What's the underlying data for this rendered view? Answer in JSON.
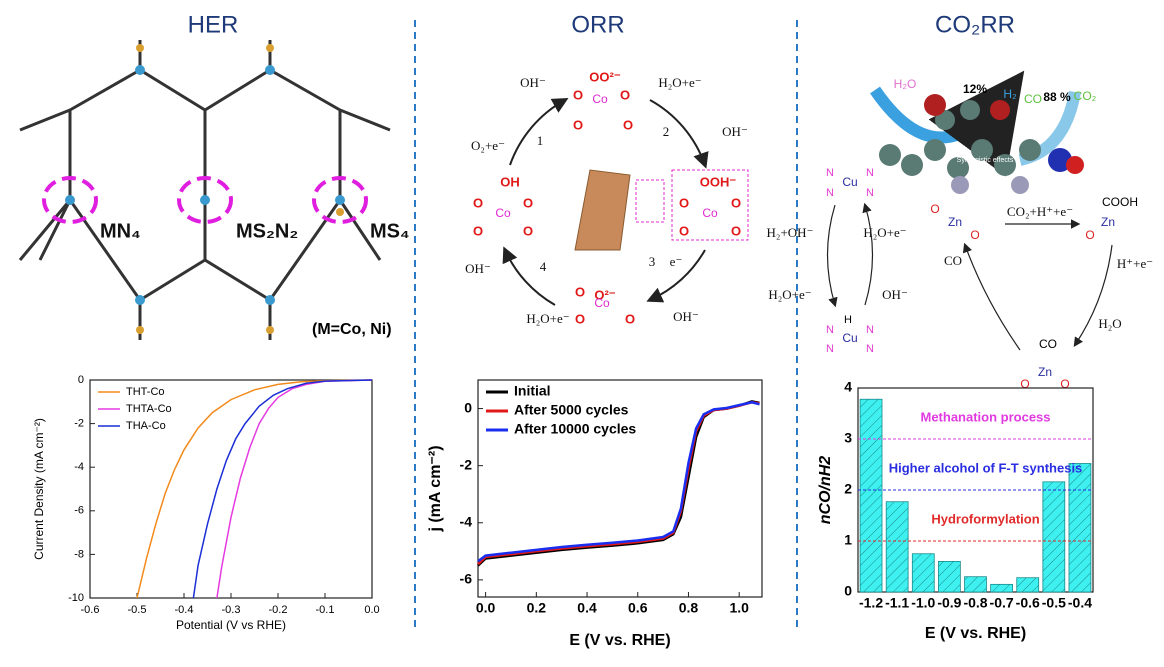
{
  "headers": [
    "HER",
    "ORR",
    "CO₂RR"
  ],
  "her_diagram": {
    "labels": [
      "MN₄",
      "MS₂N₂",
      "MS₄",
      "(M=Co, Ni)"
    ]
  },
  "orr_diagram": {
    "species": [
      "OO²⁻",
      "OOH⁻",
      "O²⁻",
      "OH"
    ],
    "metal": "Co",
    "atom": "O",
    "reagents": [
      "H₂O+e⁻",
      "O₂+e⁻",
      "e⁻",
      "H₂O+e⁻"
    ],
    "products": [
      "OH⁻",
      "OH⁻",
      "OH⁻",
      "OH⁻"
    ],
    "steps": [
      "1",
      "2",
      "3",
      "4"
    ]
  },
  "co2rr_diagram": {
    "percentages": [
      "12%",
      "88 %"
    ],
    "molecules": [
      "H₂O",
      "H₂",
      "CO",
      "CO₂"
    ],
    "note": "Synergistic effects",
    "metals": [
      "Cu",
      "Zn"
    ],
    "atom_n": "N",
    "atom_o": "O",
    "atom_h": "H",
    "species": [
      "COOH",
      "CO"
    ],
    "reagents": [
      "H₂+OH⁻",
      "H₂O+e⁻",
      "H₂O+e⁻",
      "OH⁻",
      "CO₂+H⁺+e⁻",
      "H⁺+e⁻",
      "CO",
      "H₂O"
    ]
  },
  "chart_data": [
    {
      "type": "line",
      "xlabel": "Potential (V vs RHE)",
      "ylabel": "Current Density (mA cm⁻²)",
      "xlim": [
        -0.6,
        0
      ],
      "ylim": [
        -10,
        0
      ],
      "xticks": [
        -0.6,
        -0.5,
        -0.4,
        -0.3,
        -0.2,
        -0.1,
        {
          "value": 0,
          "label": "0.0"
        }
      ],
      "yticks": [
        0,
        -2,
        -4,
        -6,
        -8,
        -10
      ],
      "legend": "upper left",
      "series": [
        {
          "name": "THT-Co",
          "color": "#f28a1c",
          "x": [
            -0.5,
            -0.48,
            -0.46,
            -0.44,
            -0.42,
            -0.4,
            -0.37,
            -0.34,
            -0.3,
            -0.25,
            -0.2,
            -0.15,
            -0.1,
            0
          ],
          "values": [
            -10,
            -8.2,
            -6.6,
            -5.2,
            -4.1,
            -3.2,
            -2.2,
            -1.5,
            -0.9,
            -0.45,
            -0.2,
            -0.08,
            -0.03,
            0
          ]
        },
        {
          "name": "THTA-Co",
          "color": "#e53ae0",
          "x": [
            -0.33,
            -0.32,
            -0.3,
            -0.28,
            -0.26,
            -0.24,
            -0.22,
            -0.2,
            -0.17,
            -0.14,
            -0.1,
            0
          ],
          "values": [
            -10,
            -8.6,
            -6.3,
            -4.5,
            -3.1,
            -2,
            -1.3,
            -0.8,
            -0.4,
            -0.2,
            -0.06,
            0
          ]
        },
        {
          "name": "THA-Co",
          "color": "#1c2fd6",
          "x": [
            -0.38,
            -0.37,
            -0.35,
            -0.33,
            -0.31,
            -0.29,
            -0.27,
            -0.24,
            -0.21,
            -0.18,
            -0.14,
            -0.1,
            0
          ],
          "values": [
            -10,
            -8.5,
            -6.6,
            -5,
            -3.7,
            -2.7,
            -2,
            -1.2,
            -0.7,
            -0.4,
            -0.15,
            -0.05,
            0
          ]
        }
      ]
    },
    {
      "type": "line",
      "xlabel": "E (V vs. RHE)",
      "ylabel": "j (mA cm⁻²)",
      "xlim": [
        -0.03,
        1.09
      ],
      "ylim": [
        -6.6,
        1
      ],
      "xticks": [
        {
          "value": 0,
          "label": "0.0"
        },
        0.2,
        0.4,
        0.6,
        0.8,
        {
          "value": 1,
          "label": "1.0"
        }
      ],
      "yticks": [
        -6,
        -4,
        -2,
        0
      ],
      "legend": "upper left",
      "series": [
        {
          "name": "Initial",
          "color": "#000000",
          "x": [
            -0.03,
            0,
            0.1,
            0.2,
            0.3,
            0.4,
            0.5,
            0.6,
            0.7,
            0.74,
            0.77,
            0.8,
            0.83,
            0.86,
            0.9,
            0.95,
            1,
            1.05,
            1.08
          ],
          "values": [
            -5.5,
            -5.25,
            -5.15,
            -5.05,
            -4.95,
            -4.87,
            -4.8,
            -4.72,
            -4.6,
            -4.4,
            -3.8,
            -2.4,
            -1,
            -0.3,
            -0.05,
            0,
            0.1,
            0.25,
            0.2
          ]
        },
        {
          "name": "After 5000 cycles",
          "color": "#e01818",
          "x": [
            -0.03,
            0,
            0.1,
            0.2,
            0.3,
            0.4,
            0.5,
            0.6,
            0.7,
            0.74,
            0.77,
            0.8,
            0.83,
            0.86,
            0.9,
            0.95,
            1,
            1.05,
            1.08
          ],
          "values": [
            -5.45,
            -5.2,
            -5.1,
            -5,
            -4.9,
            -4.82,
            -4.75,
            -4.67,
            -4.55,
            -4.35,
            -3.6,
            -2.1,
            -0.8,
            -0.25,
            -0.05,
            0,
            0.1,
            0.22,
            0.18
          ]
        },
        {
          "name": "After 10000 cycles",
          "color": "#1a2ef0",
          "x": [
            -0.03,
            0,
            0.1,
            0.2,
            0.3,
            0.4,
            0.5,
            0.6,
            0.7,
            0.74,
            0.77,
            0.8,
            0.83,
            0.86,
            0.9,
            0.95,
            1,
            1.05,
            1.08
          ],
          "values": [
            -5.35,
            -5.15,
            -5.05,
            -4.95,
            -4.85,
            -4.77,
            -4.7,
            -4.62,
            -4.5,
            -4.3,
            -3.5,
            -1.9,
            -0.7,
            -0.2,
            -0.03,
            0.02,
            0.12,
            0.22,
            0.15
          ]
        }
      ]
    },
    {
      "type": "bar",
      "xlabel": "E (V vs. RHE)",
      "ylabel": "nCO/nH2",
      "categories": [
        "-1.2",
        "-1.1",
        "-1.0",
        "-0.9",
        "-0.8",
        "-0.7",
        "-0.6",
        "-0.5",
        "-0.4"
      ],
      "values": [
        3.78,
        1.77,
        0.75,
        0.6,
        0.3,
        0.15,
        0.28,
        2.16,
        2.52
      ],
      "color": "#3ff0f0",
      "ylim": [
        0,
        4
      ],
      "yticks": [
        0,
        1,
        2,
        3,
        4
      ],
      "reference_lines": [
        {
          "value": 3,
          "label": "Methanation process",
          "color": "#e03ae0"
        },
        {
          "value": 2,
          "label": "Higher alcohol of F-T synthesis",
          "color": "#2a2ee0"
        },
        {
          "value": 1,
          "label": "Hydroformylation",
          "color": "#e02a2a"
        }
      ]
    }
  ]
}
